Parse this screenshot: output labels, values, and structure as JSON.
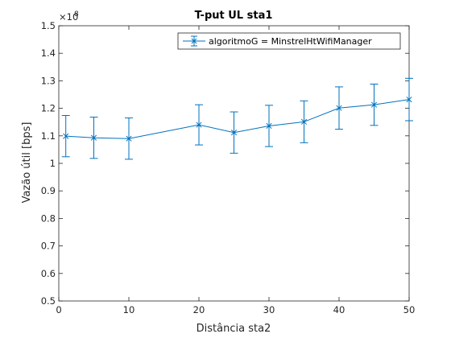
{
  "chart_data": {
    "type": "line",
    "title": "T-put UL sta1",
    "xlabel": "Distância sta2",
    "ylabel": "Vazão útil [bps]",
    "xlim": [
      0,
      50
    ],
    "ylim": [
      0.5,
      1.5
    ],
    "y_exponent_label": "×10",
    "y_exponent_power": "8",
    "xticks": [
      "0",
      "10",
      "20",
      "30",
      "40",
      "50"
    ],
    "yticks": [
      "0.5",
      "0.6",
      "0.7",
      "0.8",
      "0.9",
      "1",
      "1.1",
      "1.2",
      "1.3",
      "1.4",
      "1.5"
    ],
    "xtick_values": [
      0,
      10,
      20,
      30,
      40,
      50
    ],
    "ytick_values": [
      0.5,
      0.6,
      0.7,
      0.8,
      0.9,
      1.0,
      1.1,
      1.2,
      1.3,
      1.4,
      1.5
    ],
    "grid": false,
    "legend_position": "top-right",
    "marker": "x",
    "color": "#0072BD",
    "series": [
      {
        "name": "algoritmoG = MinstrelHtWifiManager",
        "x": [
          1,
          5,
          10,
          20,
          25,
          30,
          35,
          40,
          45,
          50
        ],
        "y": [
          1.099,
          1.093,
          1.09,
          1.14,
          1.112,
          1.136,
          1.151,
          1.201,
          1.213,
          1.232
        ],
        "err": [
          0.075,
          0.075,
          0.075,
          0.073,
          0.075,
          0.075,
          0.076,
          0.077,
          0.075,
          0.077
        ]
      }
    ]
  }
}
